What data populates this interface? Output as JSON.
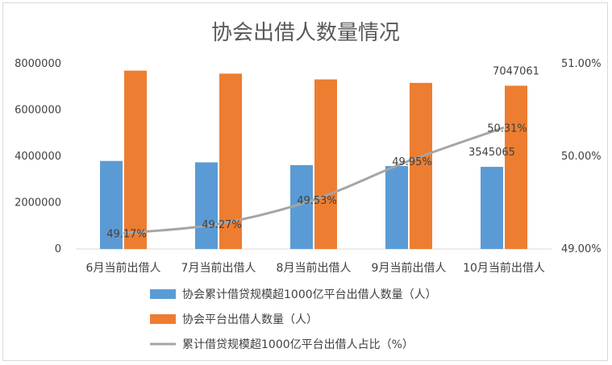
{
  "chart_data": {
    "type": "bar",
    "title": "协会出借人数量情况",
    "categories": [
      "6月当前出借人",
      "7月当前出借人",
      "8月当前出借人",
      "9月当前出借人",
      "10月当前出借人"
    ],
    "series": [
      {
        "name": "协会累计借贷规模超1000亿平台出借人数量（人）",
        "kind": "bar",
        "axis": "left",
        "color": "#5B9BD5",
        "values": [
          3800000,
          3740000,
          3620000,
          3580000,
          3545065
        ]
      },
      {
        "name": "协会平台出借人数量（人）",
        "kind": "bar",
        "axis": "left",
        "color": "#ED7D31",
        "values": [
          7700000,
          7570000,
          7320000,
          7170000,
          7047061
        ]
      },
      {
        "name": "累计借贷规模超1000亿平台出借人占比（%）",
        "kind": "line",
        "axis": "right",
        "color": "#A5A5A5",
        "values": [
          49.17,
          49.27,
          49.53,
          49.95,
          50.31
        ]
      }
    ],
    "y_left": {
      "min": 0,
      "max": 8000000,
      "ticks": [
        "0",
        "2000000",
        "4000000",
        "6000000",
        "8000000"
      ]
    },
    "y_right": {
      "min": 49.0,
      "max": 51.0,
      "ticks": [
        "49.00%",
        "50.00%",
        "51.00%"
      ]
    },
    "data_labels": {
      "bar_blue_last": "3545065",
      "bar_orange_last": "7047061",
      "line": [
        "49.17%",
        "49.27%",
        "49.53%",
        "49.95%",
        "50.31%"
      ]
    },
    "legend_position": "bottom",
    "grid": false
  }
}
